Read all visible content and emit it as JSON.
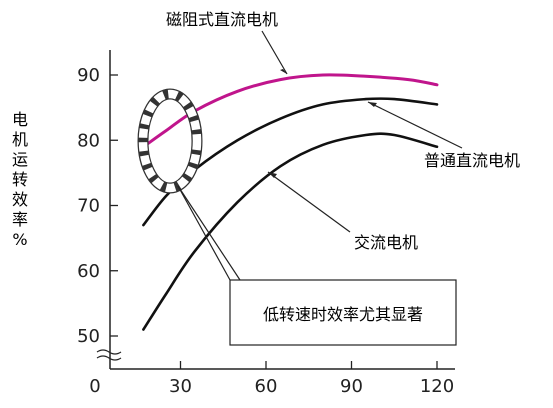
{
  "chart_data": {
    "type": "line",
    "title": "",
    "xlabel": "",
    "ylabel": "电机运转效率%",
    "xlim": [
      0,
      120
    ],
    "ylim": [
      50,
      90
    ],
    "x_ticks": [
      "0",
      "30",
      "60",
      "90",
      "120"
    ],
    "y_ticks": [
      "50",
      "60",
      "70",
      "80",
      "90"
    ],
    "grid": false,
    "legend": "none",
    "series": [
      {
        "name": "磁阻式直流电机",
        "color": "#c0158c",
        "points": [
          [
            17,
            79
          ],
          [
            25,
            81.5
          ],
          [
            35,
            84.5
          ],
          [
            50,
            87.5
          ],
          [
            65,
            89.3
          ],
          [
            80,
            90
          ],
          [
            95,
            89.8
          ],
          [
            110,
            89.3
          ],
          [
            120,
            88.5
          ]
        ]
      },
      {
        "name": "普通直流电机",
        "color": "#111111",
        "points": [
          [
            17,
            67
          ],
          [
            25,
            71.5
          ],
          [
            35,
            75.5
          ],
          [
            50,
            80
          ],
          [
            65,
            83.3
          ],
          [
            80,
            85.5
          ],
          [
            95,
            86.3
          ],
          [
            105,
            86.3
          ],
          [
            120,
            85.5
          ]
        ]
      },
      {
        "name": "交流电机",
        "color": "#111111",
        "points": [
          [
            17,
            51
          ],
          [
            25,
            56.5
          ],
          [
            35,
            63
          ],
          [
            50,
            70.5
          ],
          [
            65,
            76
          ],
          [
            80,
            79.3
          ],
          [
            95,
            80.8
          ],
          [
            105,
            80.8
          ],
          [
            120,
            79
          ]
        ]
      }
    ],
    "annotations": [
      {
        "id": "magnetic-label",
        "text": "磁阻式直流电机",
        "target_series": 0
      },
      {
        "id": "normal-label",
        "text": "普通直流电机",
        "target_series": 1
      },
      {
        "id": "ac-label",
        "text": "交流电机",
        "target_series": 2
      },
      {
        "id": "callout",
        "text": "低转速时效率尤其显著"
      }
    ]
  }
}
